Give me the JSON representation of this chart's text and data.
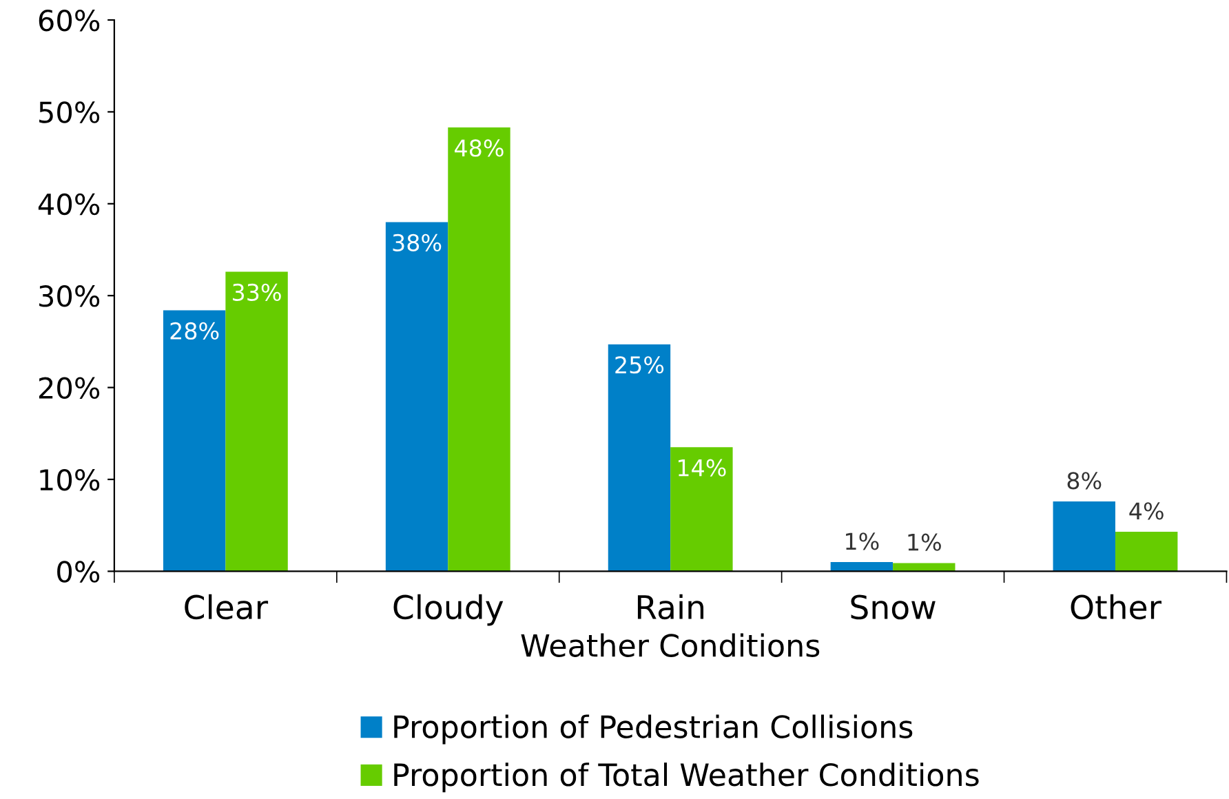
{
  "chart_data": {
    "type": "bar",
    "xlabel": "Weather Conditions",
    "categories": [
      "Clear",
      "Cloudy",
      "Rain",
      "Snow",
      "Other"
    ],
    "series": [
      {
        "name": "Proportion of Pedestrian Collisions",
        "color": "#0080c8",
        "values": [
          28.4,
          38,
          24.7,
          1,
          7.6
        ],
        "value_labels": [
          "28%",
          "38%",
          "25%",
          "1%",
          "8%"
        ]
      },
      {
        "name": "Proportion of Total Weather Conditions",
        "color": "#66cc00",
        "values": [
          32.6,
          48.3,
          13.5,
          0.9,
          4.3
        ],
        "value_labels": [
          "33%",
          "48%",
          "14%",
          "1%",
          "4%"
        ]
      }
    ],
    "ylim": [
      0,
      60
    ],
    "yticks": [
      {
        "value": 0,
        "label": "0%"
      },
      {
        "value": 10,
        "label": "10%"
      },
      {
        "value": 20,
        "label": "20%"
      },
      {
        "value": 30,
        "label": "30%"
      },
      {
        "value": 40,
        "label": "40%"
      },
      {
        "value": 50,
        "label": "50%"
      },
      {
        "value": 60,
        "label": "60%"
      }
    ],
    "grid": false,
    "legend": "bottom"
  }
}
